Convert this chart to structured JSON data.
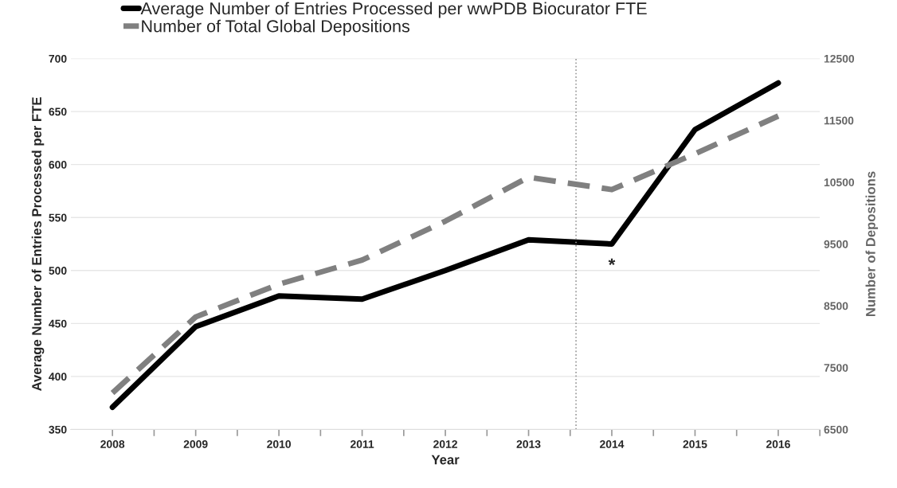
{
  "chart_data": {
    "type": "line",
    "xlabel": "Year",
    "ylabel": "Average Number of Entries Processed per FTE",
    "y2label": "Number of Depositions",
    "x": [
      2008,
      2009,
      2010,
      2011,
      2012,
      2013,
      2014,
      2015,
      2016
    ],
    "series": [
      {
        "name": "Average Number of Entries Processed per wwPDB Biocurator FTE",
        "color": "#000000",
        "line_style": "solid",
        "values": [
          371,
          447,
          476,
          473,
          500,
          529,
          525,
          633,
          677
        ]
      },
      {
        "name": "Number of Total Global Depositions",
        "color": "#808080",
        "line_style": "dashed",
        "axis": "y2",
        "values": [
          7090,
          8320,
          8850,
          9240,
          9870,
          10580,
          10380,
          10960,
          11570
        ]
      }
    ],
    "xlim": [
      2007.5,
      2016.5
    ],
    "xticks": [
      2008,
      {
        "value": 2008.5,
        "label": null
      },
      2009,
      {
        "value": 2009.5,
        "label": null
      },
      2010,
      {
        "value": 2010.5,
        "label": null
      },
      2011,
      {
        "value": 2011.5,
        "label": null
      },
      2012,
      {
        "value": 2012.5,
        "label": null
      },
      2013,
      {
        "value": 2013.5,
        "label": null
      },
      2014,
      {
        "value": 2014.5,
        "label": null
      },
      2015,
      {
        "value": 2015.5,
        "label": null
      },
      2016,
      {
        "value": 2016.5,
        "label": null
      }
    ],
    "ylim": [
      350,
      700
    ],
    "yticks": [
      350,
      400,
      450,
      500,
      550,
      600,
      650,
      700
    ],
    "y2lim": [
      6500,
      12500
    ],
    "y2ticks": [
      6500,
      7500,
      8500,
      9500,
      10500,
      11500,
      12500
    ],
    "ref_lines": [
      {
        "axis": "x",
        "value": 2013.57,
        "color": "#999999",
        "line_style": "dotted"
      }
    ],
    "annotations": [
      {
        "text": "*",
        "x": 2014,
        "y": 525
      }
    ],
    "grid": "y",
    "legend": "top",
    "marker": "none"
  }
}
